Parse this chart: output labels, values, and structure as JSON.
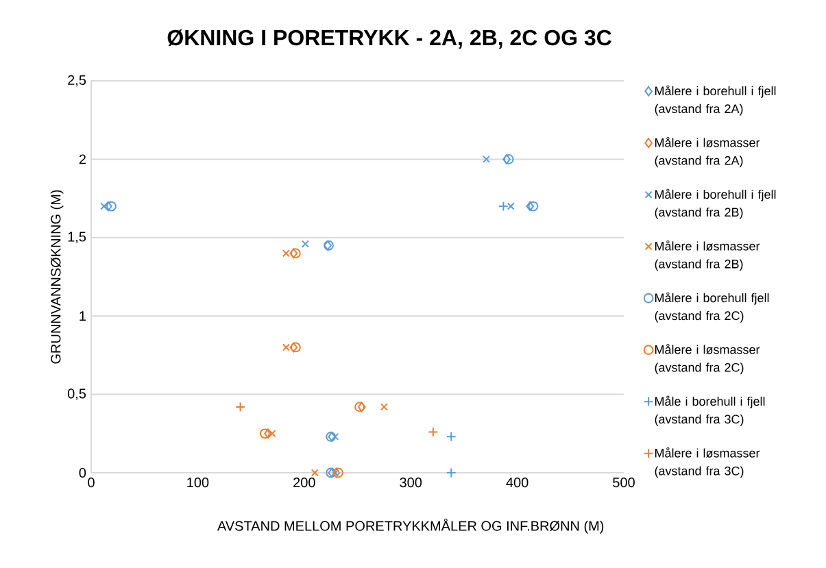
{
  "chart_data": {
    "type": "scatter",
    "title": "ØKNING I PORETRYKK - 2A, 2B, 2C OG 3C",
    "xlabel": "AVSTAND MELLOM  PORETRYKKMÅLER OG INF.BRØNN (M)",
    "ylabel": "GRUNNVANNSØKNING (M)",
    "xlim": [
      0,
      500
    ],
    "xticks": [
      0,
      100,
      200,
      300,
      400,
      500
    ],
    "ylim": [
      0,
      2.5
    ],
    "yticks": [
      0,
      {
        "value": 0.5,
        "label": "0,5"
      },
      1,
      {
        "value": 1.5,
        "label": "1,5"
      },
      2,
      {
        "value": 2.5,
        "label": "2,5"
      }
    ],
    "grid": "y",
    "legend": "right",
    "series": [
      {
        "name": "Målere i borehull i fjell (avstand fra 2A)",
        "color": "#5b9bd5",
        "marker": "diamond",
        "x": [
          16,
          390,
          412,
          222,
          226,
          226
        ],
        "values": [
          1.7,
          2,
          1.7,
          1.45,
          0.23,
          0
        ]
      },
      {
        "name": "Målere i løsmasser (avstand fra 2A)",
        "color": "#ed7d31",
        "marker": "diamond",
        "x": [
          190,
          190,
          254,
          166,
          230
        ],
        "values": [
          1.4,
          0.8,
          0.42,
          0.25,
          0
        ]
      },
      {
        "name": "Målere i borehull i fjell (avstand fra 2B)",
        "color": "#5b9bd5",
        "marker": "cross",
        "x": [
          12,
          371,
          394,
          201,
          229,
          229
        ],
        "values": [
          1.7,
          2,
          1.7,
          1.46,
          0.23,
          0
        ]
      },
      {
        "name": "Målere i løsmasser (avstand fra 2B)",
        "color": "#ed7d31",
        "marker": "cross",
        "x": [
          183,
          183,
          275,
          170,
          210
        ],
        "values": [
          1.4,
          0.8,
          0.42,
          0.25,
          0
        ]
      },
      {
        "name": "Målere i borehull fjell (avstand fra 2C)",
        "color": "#5b9bd5",
        "marker": "circle",
        "x": [
          19,
          392,
          415,
          223,
          225,
          225
        ],
        "values": [
          1.7,
          2,
          1.7,
          1.45,
          0.23,
          0
        ]
      },
      {
        "name": "Målere i løsmasser (avstand fra 2C)",
        "color": "#ed7d31",
        "marker": "circle",
        "x": [
          192,
          192,
          252,
          163,
          232
        ],
        "values": [
          1.4,
          0.8,
          0.42,
          0.25,
          0
        ]
      },
      {
        "name": "Måle i borehull i fjell (avstand fra 3C)",
        "color": "#5b9bd5",
        "marker": "plus",
        "x": [
          387,
          338,
          338
        ],
        "values": [
          1.7,
          0.23,
          0
        ]
      },
      {
        "name": "Målere i løsmasser (avstand fra 3C)",
        "color": "#ed7d31",
        "marker": "plus",
        "x": [
          140,
          321
        ],
        "values": [
          0.42,
          0.26
        ]
      }
    ]
  }
}
